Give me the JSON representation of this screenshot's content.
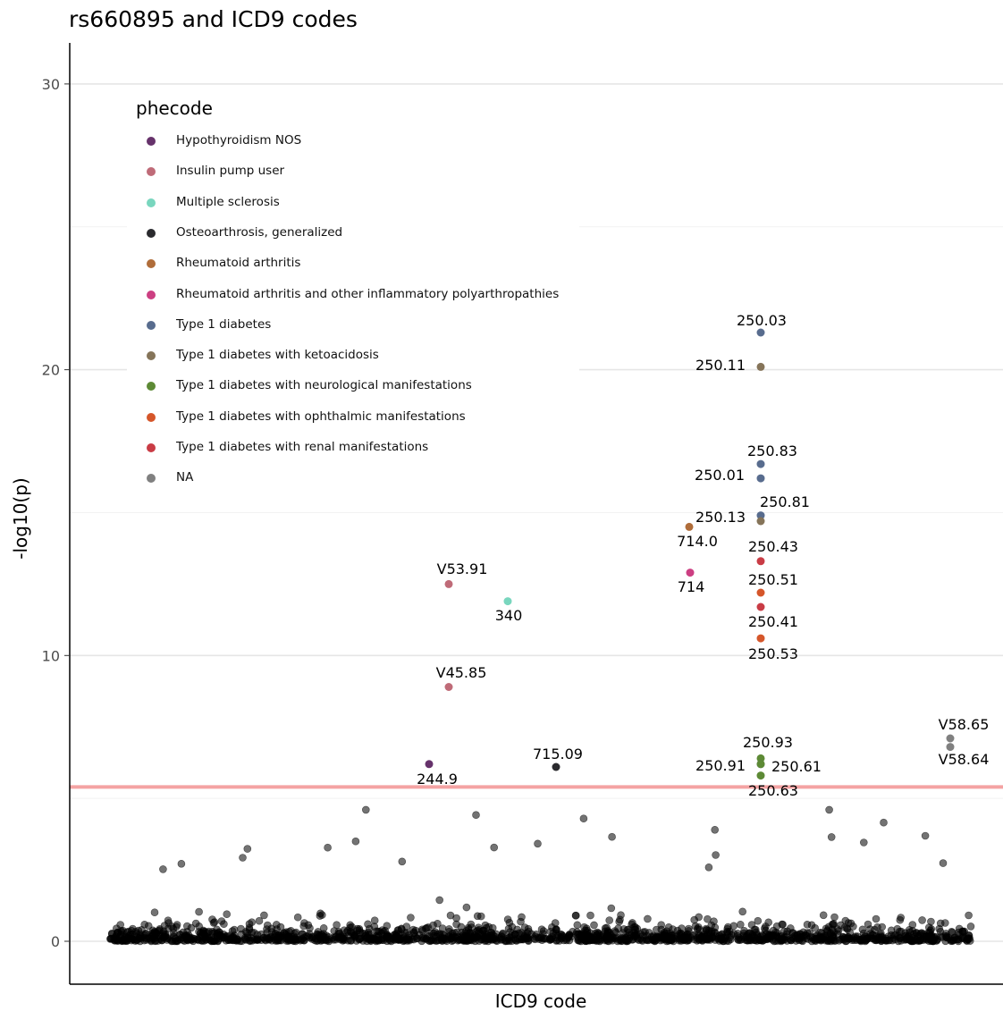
{
  "chart_data": {
    "type": "scatter",
    "title": "rs660895 and ICD9 codes",
    "xlabel": "ICD9 code",
    "ylabel": "-log10(p)",
    "ylim": [
      -1.5,
      31.5
    ],
    "y_ticks": [
      0,
      10,
      20,
      30
    ],
    "grid": "horizontal",
    "threshold_line": 5.4,
    "legend": {
      "title": "phecode",
      "position": "top-left inside",
      "entries": [
        {
          "label": "Hypothyroidism NOS",
          "color": "#66326b"
        },
        {
          "label": "Insulin pump user",
          "color": "#bf6b78"
        },
        {
          "label": "Multiple sclerosis",
          "color": "#79d6be"
        },
        {
          "label": "Osteoarthrosis, generalized",
          "color": "#2a2a2e"
        },
        {
          "label": "Rheumatoid arthritis",
          "color": "#b06d3a"
        },
        {
          "label": "Rheumatoid arthritis and other inflammatory polyarthropathies",
          "color": "#cc3f82"
        },
        {
          "label": "Type 1 diabetes",
          "color": "#586c8e"
        },
        {
          "label": "Type 1 diabetes with ketoacidosis",
          "color": "#857459"
        },
        {
          "label": "Type 1 diabetes with neurological manifestations",
          "color": "#5d8a35"
        },
        {
          "label": "Type 1 diabetes with ophthalmic manifestations",
          "color": "#d5562a"
        },
        {
          "label": "Type 1 diabetes with renal manifestations",
          "color": "#c93c45"
        },
        {
          "label": "NA",
          "color": "#808080"
        }
      ]
    },
    "highlighted_points": [
      {
        "code": "250.03",
        "y": 21.3,
        "group": "Type 1 diabetes"
      },
      {
        "code": "250.11",
        "y": 20.1,
        "group": "Type 1 diabetes with ketoacidosis"
      },
      {
        "code": "250.83",
        "y": 16.7,
        "group": "Type 1 diabetes"
      },
      {
        "code": "250.01",
        "y": 16.2,
        "group": "Type 1 diabetes"
      },
      {
        "code": "250.81",
        "y": 14.9,
        "group": "Type 1 diabetes"
      },
      {
        "code": "250.13",
        "y": 14.7,
        "group": "Type 1 diabetes with ketoacidosis"
      },
      {
        "code": "714.0",
        "y": 14.5,
        "group": "Rheumatoid arthritis"
      },
      {
        "code": "250.43",
        "y": 13.3,
        "group": "Type 1 diabetes with renal manifestations"
      },
      {
        "code": "714",
        "y": 12.9,
        "group": "Rheumatoid arthritis and other inflammatory polyarthropathies"
      },
      {
        "code": "V53.91",
        "y": 12.5,
        "group": "Insulin pump user"
      },
      {
        "code": "250.51",
        "y": 12.2,
        "group": "Type 1 diabetes with ophthalmic manifestations"
      },
      {
        "code": "340",
        "y": 11.9,
        "group": "Multiple sclerosis"
      },
      {
        "code": "250.41",
        "y": 11.7,
        "group": "Type 1 diabetes with renal manifestations"
      },
      {
        "code": "250.53",
        "y": 10.6,
        "group": "Type 1 diabetes with ophthalmic manifestations"
      },
      {
        "code": "V45.85",
        "y": 8.9,
        "group": "Insulin pump user"
      },
      {
        "code": "V58.65",
        "y": 7.1,
        "group": "NA"
      },
      {
        "code": "V58.64",
        "y": 6.8,
        "group": "NA"
      },
      {
        "code": "250.93",
        "y": 6.4,
        "group": "Type 1 diabetes with neurological manifestations"
      },
      {
        "code": "250.91",
        "y": 6.2,
        "group": "Type 1 diabetes"
      },
      {
        "code": "250.61",
        "y": 6.2,
        "group": "Type 1 diabetes with neurological manifestations"
      },
      {
        "code": "244.9",
        "y": 6.2,
        "group": "Hypothyroidism NOS"
      },
      {
        "code": "715.09",
        "y": 6.1,
        "group": "Osteoarthrosis, generalized"
      },
      {
        "code": "250.63",
        "y": 5.8,
        "group": "Type 1 diabetes with neurological manifestations"
      }
    ],
    "background_points_color": "#000000"
  }
}
